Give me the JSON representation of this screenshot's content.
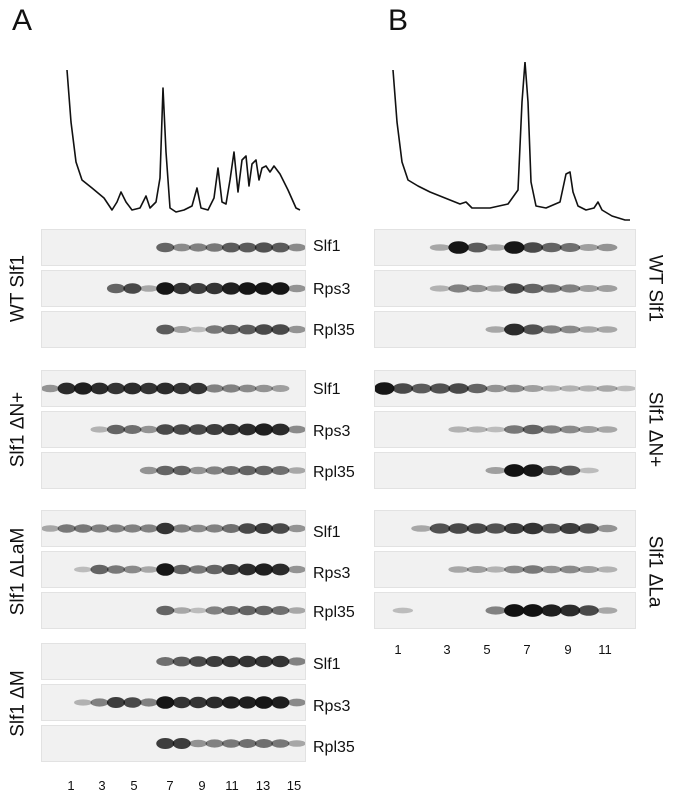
{
  "panels": [
    {
      "letter": "A",
      "groups": [
        {
          "label": "WT Slf1",
          "blots": [
            {
              "protein": "Slf1",
              "lanes": [
                0,
                0,
                0,
                0,
                0,
                0,
                0,
                0.55,
                0.35,
                0.4,
                0.45,
                0.6,
                0.6,
                0.65,
                0.6,
                0.35
              ]
            },
            {
              "protein": "Rps3",
              "lanes": [
                0,
                0,
                0,
                0,
                0.55,
                0.7,
                0.2,
                0.95,
                0.8,
                0.75,
                0.8,
                0.9,
                0.95,
                0.95,
                0.95,
                0.3
              ]
            },
            {
              "protein": "Rpl35",
              "lanes": [
                0,
                0,
                0,
                0,
                0,
                0,
                0,
                0.6,
                0.25,
                0.1,
                0.45,
                0.55,
                0.6,
                0.7,
                0.7,
                0.3
              ]
            }
          ]
        },
        {
          "label": "Slf1 ΔN+",
          "blots": [
            {
              "protein": "Slf1",
              "lanes": [
                0.3,
                0.85,
                0.9,
                0.85,
                0.8,
                0.85,
                0.8,
                0.85,
                0.8,
                0.8,
                0.4,
                0.4,
                0.35,
                0.3,
                0.25,
                0
              ]
            },
            {
              "protein": "Rps3",
              "lanes": [
                0,
                0,
                0,
                0.15,
                0.55,
                0.5,
                0.3,
                0.7,
                0.7,
                0.7,
                0.75,
                0.8,
                0.85,
                0.9,
                0.85,
                0.35
              ]
            },
            {
              "protein": "Rpl35",
              "lanes": [
                0,
                0,
                0,
                0,
                0,
                0,
                0.3,
                0.55,
                0.55,
                0.3,
                0.4,
                0.5,
                0.55,
                0.55,
                0.5,
                0.2
              ]
            }
          ]
        },
        {
          "label": "Slf1 ΔLaM",
          "blots": [
            {
              "protein": "Slf1",
              "lanes": [
                0.2,
                0.45,
                0.45,
                0.4,
                0.4,
                0.4,
                0.4,
                0.8,
                0.4,
                0.35,
                0.4,
                0.5,
                0.7,
                0.75,
                0.7,
                0.3
              ]
            },
            {
              "protein": "Rps3",
              "lanes": [
                0,
                0,
                0.1,
                0.55,
                0.45,
                0.35,
                0.2,
                0.95,
                0.55,
                0.45,
                0.55,
                0.75,
                0.85,
                0.9,
                0.85,
                0.3
              ]
            },
            {
              "protein": "Rpl35",
              "lanes": [
                0,
                0,
                0,
                0,
                0,
                0,
                0,
                0.55,
                0.2,
                0.1,
                0.4,
                0.5,
                0.55,
                0.55,
                0.5,
                0.2
              ]
            }
          ]
        },
        {
          "label": "Slf1 ΔM",
          "blots": [
            {
              "protein": "Slf1",
              "lanes": [
                0,
                0,
                0,
                0,
                0,
                0,
                0,
                0.5,
                0.6,
                0.7,
                0.75,
                0.8,
                0.8,
                0.8,
                0.8,
                0.4
              ]
            },
            {
              "protein": "Rps3",
              "lanes": [
                0,
                0,
                0.15,
                0.4,
                0.75,
                0.7,
                0.4,
                0.95,
                0.8,
                0.8,
                0.85,
                0.9,
                0.9,
                0.95,
                0.9,
                0.35
              ]
            },
            {
              "protein": "Rpl35",
              "lanes": [
                0,
                0,
                0,
                0,
                0,
                0,
                0,
                0.75,
                0.75,
                0.3,
                0.4,
                0.45,
                0.5,
                0.5,
                0.45,
                0.2
              ]
            }
          ]
        }
      ],
      "lane_numbers": [
        "1",
        "3",
        "5",
        "7",
        "9",
        "11",
        "13",
        "15"
      ]
    },
    {
      "letter": "B",
      "groups": [
        {
          "label": "WT Slf1",
          "blots": [
            {
              "protein": "Slf1",
              "lanes": [
                0,
                0,
                0,
                0.2,
                0.95,
                0.6,
                0.2,
                0.95,
                0.7,
                0.55,
                0.5,
                0.25,
                0.3,
                0
              ]
            },
            {
              "protein": "Rps3",
              "lanes": [
                0,
                0,
                0,
                0.15,
                0.4,
                0.3,
                0.2,
                0.7,
                0.55,
                0.45,
                0.4,
                0.25,
                0.25,
                0
              ]
            },
            {
              "protein": "Rpl35",
              "lanes": [
                0,
                0,
                0,
                0,
                0,
                0,
                0.2,
                0.85,
                0.65,
                0.4,
                0.35,
                0.2,
                0.2,
                0
              ]
            }
          ]
        },
        {
          "label": "Slf1 ΔN+",
          "blots": [
            {
              "protein": "Slf1",
              "lanes": [
                0.95,
                0.7,
                0.6,
                0.65,
                0.7,
                0.55,
                0.3,
                0.35,
                0.25,
                0.15,
                0.15,
                0.15,
                0.2,
                0.1
              ]
            },
            {
              "protein": "Rps3",
              "lanes": [
                0,
                0,
                0,
                0,
                0.15,
                0.15,
                0.1,
                0.45,
                0.55,
                0.4,
                0.35,
                0.25,
                0.2,
                0
              ]
            },
            {
              "protein": "Rpl35",
              "lanes": [
                0,
                0,
                0,
                0,
                0,
                0,
                0.25,
                0.98,
                0.95,
                0.55,
                0.6,
                0.1,
                0,
                0
              ]
            }
          ]
        },
        {
          "label": "Slf1 ΔLa",
          "blots": [
            {
              "protein": "Slf1",
              "lanes": [
                0,
                0,
                0.2,
                0.65,
                0.7,
                0.7,
                0.65,
                0.75,
                0.8,
                0.6,
                0.75,
                0.65,
                0.3,
                0
              ]
            },
            {
              "protein": "Rps3",
              "lanes": [
                0,
                0,
                0,
                0,
                0.2,
                0.25,
                0.15,
                0.35,
                0.45,
                0.3,
                0.35,
                0.25,
                0.15,
                0
              ]
            },
            {
              "protein": "Rpl35",
              "lanes": [
                0,
                0.1,
                0,
                0,
                0,
                0,
                0.4,
                0.98,
                0.98,
                0.9,
                0.85,
                0.7,
                0.2,
                0
              ]
            }
          ]
        }
      ],
      "lane_numbers": [
        "1",
        "3",
        "5",
        "7",
        "9",
        "11"
      ]
    }
  ]
}
